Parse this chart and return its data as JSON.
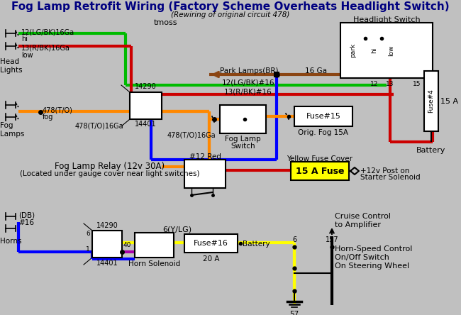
{
  "bg": "#c0c0c0",
  "navy": "#000080",
  "black": "#000000",
  "green": "#00bb00",
  "red": "#cc0000",
  "orange": "#ff8800",
  "blue": "#0000ff",
  "brown": "#8B4513",
  "yellow": "#ffff00",
  "purple": "#aa00aa",
  "title": "Fog Lamp Retrofit Wiring (Factory Scheme Overheats Headlight Switch)",
  "subtitle": "(Rewiring of original circuit 478)",
  "author": "tmoss"
}
